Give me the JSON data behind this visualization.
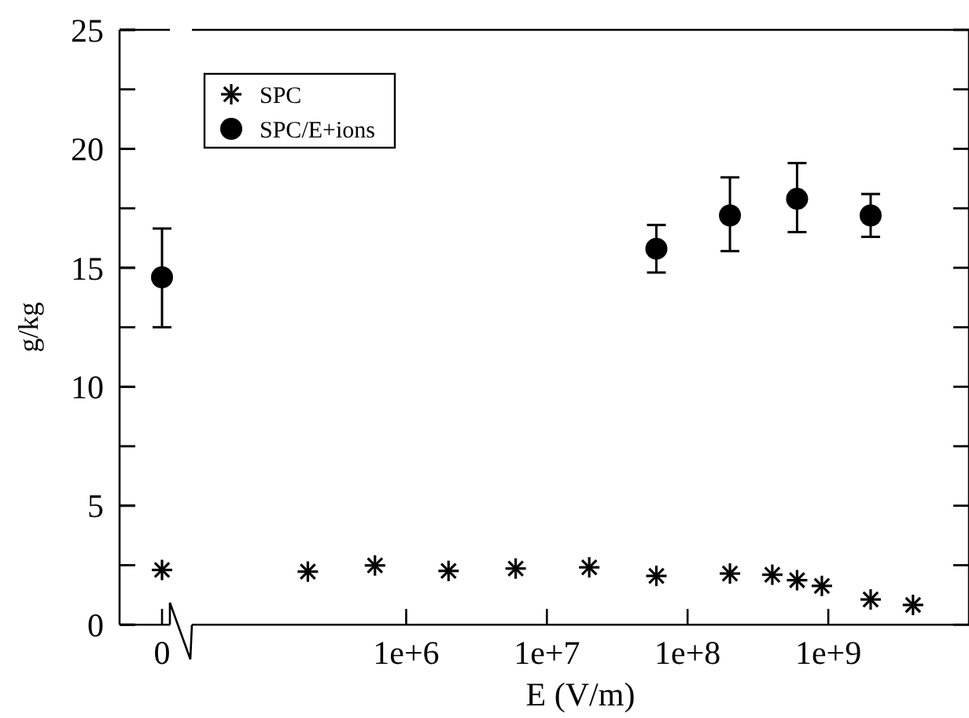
{
  "chart_data": [
    {
      "type": "scatter",
      "ylabel": "g/kg",
      "categories": [
        "0"
      ],
      "ylim": [
        0,
        25
      ],
      "yticks": [
        0,
        5,
        10,
        15,
        20,
        25
      ],
      "grid": false,
      "legend": false,
      "series": [
        {
          "color": "#000000",
          "marker": "cross",
          "values": [
            2.3
          ]
        },
        {
          "color": "#000000",
          "marker": "circle",
          "values": [
            14.6
          ],
          "errors": [
            [
              12.5,
              16.65
            ]
          ]
        }
      ]
    },
    {
      "type": "scatter",
      "xlabel": "E (V/m)",
      "log": "x",
      "xlim": [
        30000,
        10000000000
      ],
      "xticks": [
        {
          "value": 1000000,
          "label": "1e+6"
        },
        {
          "value": 10000000,
          "label": "1e+7"
        },
        {
          "value": 100000000,
          "label": "1e+8"
        },
        {
          "value": 1000000000,
          "label": "1e+9"
        }
      ],
      "ylim": [
        0,
        25
      ],
      "yticks": [
        0,
        {
          "value": 2.5,
          "label": null
        },
        5,
        {
          "value": 7.5,
          "label": null
        },
        10,
        {
          "value": 12.5,
          "label": null
        },
        15,
        {
          "value": 17.5,
          "label": null
        },
        20,
        {
          "value": 22.5,
          "label": null
        },
        25
      ],
      "tick_labels": "x",
      "grid": false,
      "legend": "top left",
      "series": [
        {
          "name": "SPC",
          "color": "#000000",
          "marker": "cross",
          "x": [
            200000,
            600000,
            2000000,
            6000000,
            20000000,
            60000000,
            200000000,
            400000000,
            600000000,
            900000000,
            2000000000,
            4000000000
          ],
          "values": [
            2.23,
            2.49,
            2.26,
            2.36,
            2.41,
            2.05,
            2.15,
            2.1,
            1.87,
            1.63,
            1.06,
            0.83
          ]
        },
        {
          "name": "SPC/E+ions",
          "color": "#000000",
          "marker": "circle",
          "x": [
            60000000,
            200000000,
            600000000,
            2000000000
          ],
          "values": [
            15.8,
            17.2,
            17.9,
            17.2
          ],
          "errors": [
            [
              14.8,
              16.8
            ],
            [
              15.7,
              18.8
            ],
            [
              16.5,
              19.4
            ],
            [
              16.3,
              18.1
            ]
          ]
        }
      ]
    }
  ]
}
